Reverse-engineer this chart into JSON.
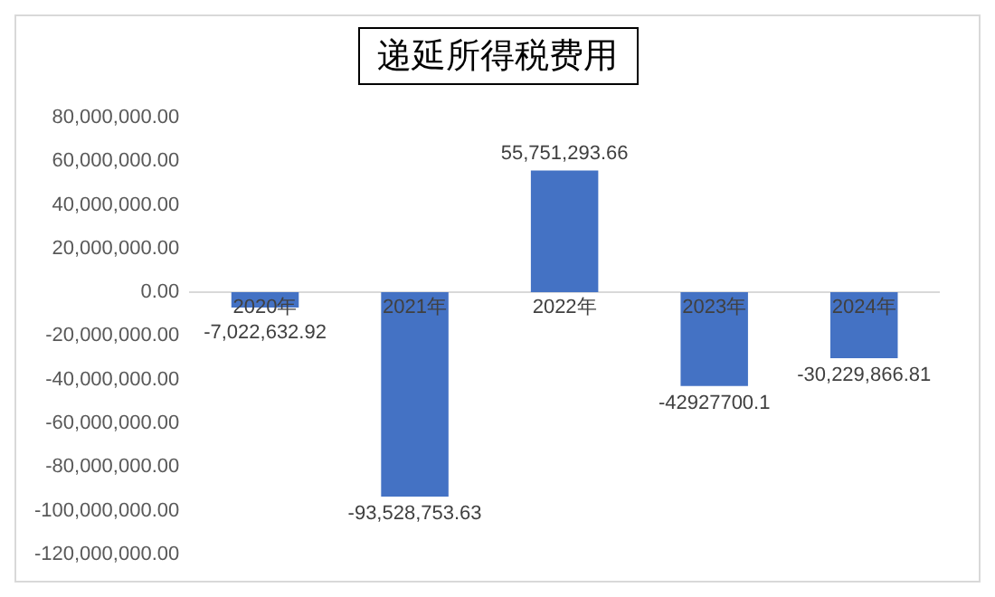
{
  "chart_data": {
    "type": "bar",
    "title": "递延所得税费用",
    "categories": [
      "2020年",
      "2021年",
      "2022年",
      "2023年",
      "2024年"
    ],
    "values": [
      -7022632.92,
      -93528753.63,
      55751293.66,
      -42927700.1,
      -30229866.81
    ],
    "value_labels": [
      "-7,022,632.92",
      "-93,528,753.63",
      "55,751,293.66",
      "-42927700.1",
      "-30,229,866.81"
    ],
    "color": "#4472c4",
    "ylim": [
      -120000000,
      80000000
    ],
    "yticks": [
      {
        "value": -120000000,
        "label": "-120,000,000.00"
      },
      {
        "value": -100000000,
        "label": "-100,000,000.00"
      },
      {
        "value": -80000000,
        "label": "-80,000,000.00"
      },
      {
        "value": -60000000,
        "label": "-60,000,000.00"
      },
      {
        "value": -40000000,
        "label": "-40,000,000.00"
      },
      {
        "value": -20000000,
        "label": "-20,000,000.00"
      },
      {
        "value": 0,
        "label": "0.00"
      },
      {
        "value": 20000000,
        "label": "20,000,000.00"
      },
      {
        "value": 40000000,
        "label": "40,000,000.00"
      },
      {
        "value": 60000000,
        "label": "60,000,000.00"
      },
      {
        "value": 80000000,
        "label": "80,000,000.00"
      }
    ],
    "grid": false,
    "legend": false
  }
}
